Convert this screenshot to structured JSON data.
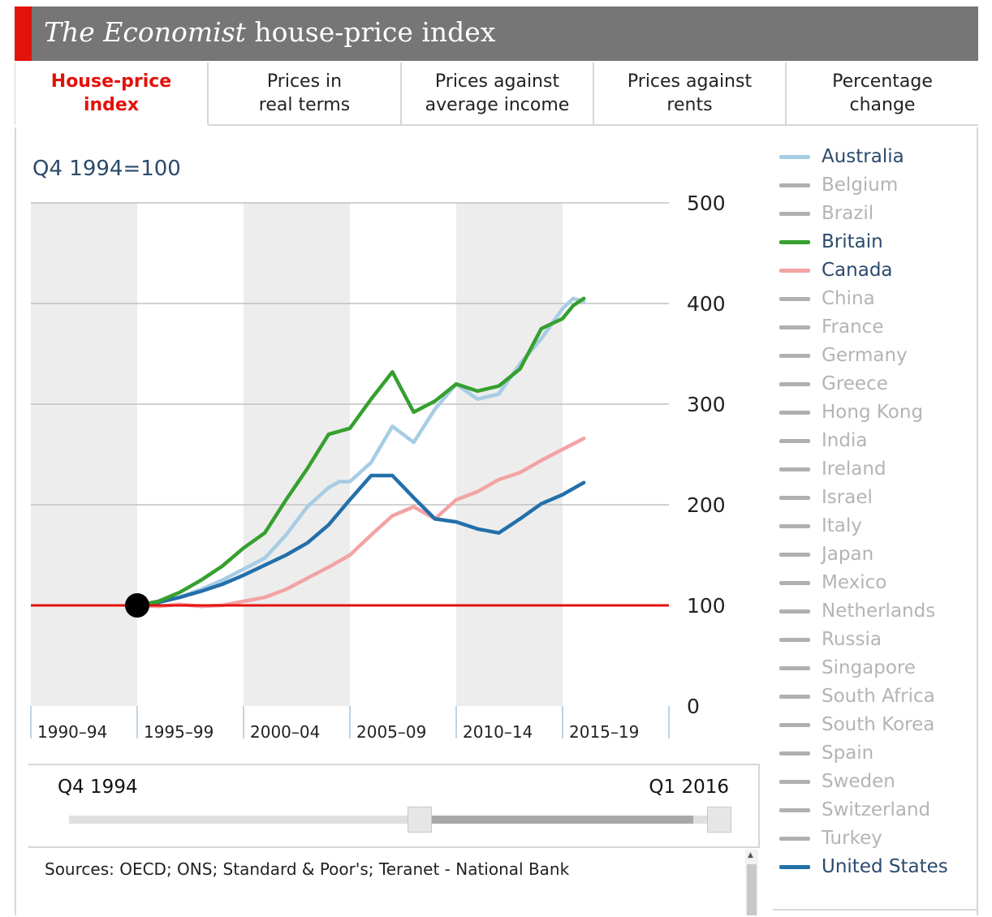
{
  "header": {
    "title_italic": "The Economist",
    "title_rest": "house-price index"
  },
  "tabs": [
    {
      "label": "House-price\nindex",
      "active": true
    },
    {
      "label": "Prices in\nreal terms",
      "active": false
    },
    {
      "label": "Prices against\naverage income",
      "active": false
    },
    {
      "label": "Prices against\nrents",
      "active": false
    },
    {
      "label": "Percentage\nchange",
      "active": false
    }
  ],
  "unit_label": "Q4 1994=100",
  "colors": {
    "accent": "#e3120b",
    "Australia": "#a6cde4",
    "Britain": "#35a02f",
    "Canada": "#f3a3a3",
    "United States": "#2270aa",
    "inactive": "#b0b0b0",
    "band": "#ededed"
  },
  "legend": [
    {
      "name": "Australia",
      "active": true
    },
    {
      "name": "Belgium",
      "active": false
    },
    {
      "name": "Brazil",
      "active": false
    },
    {
      "name": "Britain",
      "active": true
    },
    {
      "name": "Canada",
      "active": true
    },
    {
      "name": "China",
      "active": false
    },
    {
      "name": "France",
      "active": false
    },
    {
      "name": "Germany",
      "active": false
    },
    {
      "name": "Greece",
      "active": false
    },
    {
      "name": "Hong Kong",
      "active": false
    },
    {
      "name": "India",
      "active": false
    },
    {
      "name": "Ireland",
      "active": false
    },
    {
      "name": "Israel",
      "active": false
    },
    {
      "name": "Italy",
      "active": false
    },
    {
      "name": "Japan",
      "active": false
    },
    {
      "name": "Mexico",
      "active": false
    },
    {
      "name": "Netherlands",
      "active": false
    },
    {
      "name": "Russia",
      "active": false
    },
    {
      "name": "Singapore",
      "active": false
    },
    {
      "name": "South Africa",
      "active": false
    },
    {
      "name": "South Korea",
      "active": false
    },
    {
      "name": "Spain",
      "active": false
    },
    {
      "name": "Sweden",
      "active": false
    },
    {
      "name": "Switzerland",
      "active": false
    },
    {
      "name": "Turkey",
      "active": false
    },
    {
      "name": "United States",
      "active": true
    }
  ],
  "slider": {
    "start_label": "Q4 1994",
    "end_label": "Q1 2016"
  },
  "sources": "Sources: OECD; ONS; Standard & Poor's; Teranet - National Bank",
  "chart_data": {
    "type": "line",
    "x_range": [
      1990,
      2020
    ],
    "ylim": [
      0,
      500
    ],
    "y_ticks": [
      0,
      100,
      200,
      300,
      400,
      500
    ],
    "x_tick_labels": [
      "1990–94",
      "1995–99",
      "2000–04",
      "2005–09",
      "2010–14",
      "2015–19"
    ],
    "baseline": 100,
    "base_point": {
      "x": 1995.0,
      "y": 100
    },
    "grid": true,
    "series": [
      {
        "name": "Canada",
        "points": [
          [
            1995.0,
            100
          ],
          [
            1996.0,
            99
          ],
          [
            1997.0,
            101
          ],
          [
            1998.0,
            99
          ],
          [
            1999.0,
            100
          ],
          [
            2000.0,
            104
          ],
          [
            2001.0,
            108
          ],
          [
            2002.0,
            116
          ],
          [
            2003.0,
            127
          ],
          [
            2004.0,
            138
          ],
          [
            2005.0,
            150
          ],
          [
            2006.0,
            170
          ],
          [
            2007.0,
            189
          ],
          [
            2008.0,
            198
          ],
          [
            2009.0,
            186
          ],
          [
            2010.0,
            205
          ],
          [
            2011.0,
            213
          ],
          [
            2012.0,
            225
          ],
          [
            2013.0,
            232
          ],
          [
            2014.0,
            244
          ],
          [
            2015.0,
            255
          ],
          [
            2016.0,
            266
          ]
        ]
      },
      {
        "name": "Australia",
        "points": [
          [
            1995.0,
            100
          ],
          [
            1996.0,
            103
          ],
          [
            1997.0,
            108
          ],
          [
            1998.0,
            116
          ],
          [
            1999.0,
            125
          ],
          [
            2000.0,
            136
          ],
          [
            2001.0,
            147
          ],
          [
            2002.0,
            170
          ],
          [
            2003.0,
            198
          ],
          [
            2004.0,
            217
          ],
          [
            2004.5,
            223
          ],
          [
            2005.0,
            223
          ],
          [
            2006.0,
            242
          ],
          [
            2007.0,
            278
          ],
          [
            2008.0,
            262
          ],
          [
            2009.0,
            295
          ],
          [
            2010.0,
            320
          ],
          [
            2011.0,
            305
          ],
          [
            2012.0,
            310
          ],
          [
            2013.0,
            340
          ],
          [
            2014.0,
            365
          ],
          [
            2015.0,
            395
          ],
          [
            2015.5,
            405
          ],
          [
            2016.0,
            402
          ]
        ]
      },
      {
        "name": "United States",
        "points": [
          [
            1995.0,
            100
          ],
          [
            1996.0,
            103
          ],
          [
            1997.0,
            108
          ],
          [
            1998.0,
            114
          ],
          [
            1999.0,
            121
          ],
          [
            2000.0,
            130
          ],
          [
            2001.0,
            140
          ],
          [
            2002.0,
            150
          ],
          [
            2003.0,
            162
          ],
          [
            2004.0,
            180
          ],
          [
            2005.0,
            205
          ],
          [
            2006.0,
            229
          ],
          [
            2007.0,
            229
          ],
          [
            2008.0,
            207
          ],
          [
            2009.0,
            186
          ],
          [
            2010.0,
            183
          ],
          [
            2011.0,
            176
          ],
          [
            2012.0,
            172
          ],
          [
            2013.0,
            186
          ],
          [
            2014.0,
            201
          ],
          [
            2015.0,
            210
          ],
          [
            2016.0,
            222
          ]
        ]
      },
      {
        "name": "Britain",
        "points": [
          [
            1995.0,
            100
          ],
          [
            1996.0,
            104
          ],
          [
            1997.0,
            113
          ],
          [
            1998.0,
            125
          ],
          [
            1999.0,
            139
          ],
          [
            2000.0,
            157
          ],
          [
            2001.0,
            172
          ],
          [
            2002.0,
            205
          ],
          [
            2003.0,
            236
          ],
          [
            2004.0,
            270
          ],
          [
            2005.0,
            276
          ],
          [
            2006.0,
            305
          ],
          [
            2007.0,
            332
          ],
          [
            2008.0,
            292
          ],
          [
            2009.0,
            303
          ],
          [
            2010.0,
            320
          ],
          [
            2011.0,
            313
          ],
          [
            2012.0,
            318
          ],
          [
            2013.0,
            335
          ],
          [
            2014.0,
            375
          ],
          [
            2015.0,
            385
          ],
          [
            2015.5,
            398
          ],
          [
            2016.0,
            405
          ]
        ]
      }
    ]
  }
}
